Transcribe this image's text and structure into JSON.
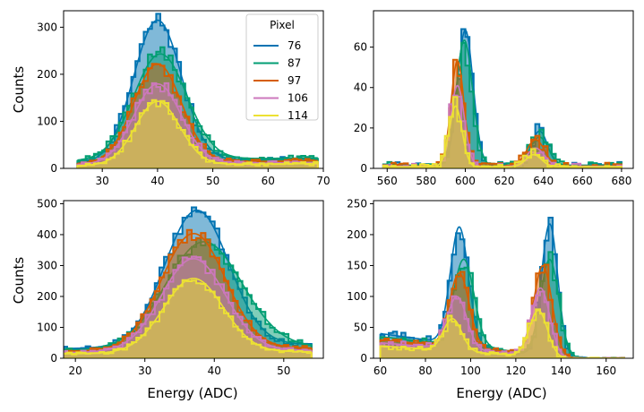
{
  "figure": {
    "y_label": "Counts",
    "x_label": "Energy (ADC)"
  },
  "chart_data": [
    {
      "type": "histogram",
      "panel": "top-left",
      "xlim": [
        23,
        70
      ],
      "ylim": [
        0,
        335
      ],
      "xticks": [
        30,
        40,
        50,
        60,
        70
      ],
      "yticks": [
        0,
        100,
        200,
        300
      ],
      "show_ylabel": true,
      "show_xlabel": false,
      "legend": {
        "title": "Pixel",
        "placement": "top-right"
      },
      "series": [
        {
          "name": "76",
          "color": "#0173b2",
          "peaks": [
            {
              "mu": 40,
              "sigma": 4.3,
              "amp": 300
            }
          ],
          "bg": 12,
          "slope": 0.2
        },
        {
          "name": "87",
          "color": "#029e73",
          "peaks": [
            {
              "mu": 40.5,
              "sigma": 4.8,
              "amp": 225
            }
          ],
          "bg": 16,
          "slope": 0.15
        },
        {
          "name": "97",
          "color": "#d55e00",
          "peaks": [
            {
              "mu": 40,
              "sigma": 4.3,
              "amp": 210
            }
          ],
          "bg": 10,
          "slope": 0.15
        },
        {
          "name": "106",
          "color": "#cc78bc",
          "peaks": [
            {
              "mu": 40,
              "sigma": 4.3,
              "amp": 170
            }
          ],
          "bg": 8,
          "slope": 0.1
        },
        {
          "name": "114",
          "color": "#ece133",
          "peaks": [
            {
              "mu": 40,
              "sigma": 4.0,
              "amp": 135
            }
          ],
          "bg": 6,
          "slope": 0.1
        }
      ]
    },
    {
      "type": "histogram",
      "panel": "top-right",
      "xlim": [
        553,
        686
      ],
      "ylim": [
        0,
        78
      ],
      "xticks": [
        560,
        580,
        600,
        620,
        640,
        660,
        680
      ],
      "yticks": [
        0,
        20,
        40,
        60
      ],
      "show_ylabel": false,
      "show_xlabel": false,
      "series": [
        {
          "name": "76",
          "color": "#0173b2",
          "peaks": [
            {
              "mu": 600,
              "sigma": 4.0,
              "amp": 67
            },
            {
              "mu": 638,
              "sigma": 4.0,
              "amp": 17
            }
          ],
          "bg": 1.5,
          "slope": 0
        },
        {
          "name": "87",
          "color": "#029e73",
          "peaks": [
            {
              "mu": 599.5,
              "sigma": 4.2,
              "amp": 62
            },
            {
              "mu": 638,
              "sigma": 4.5,
              "amp": 14
            }
          ],
          "bg": 1.5,
          "slope": 0
        },
        {
          "name": "97",
          "color": "#d55e00",
          "peaks": [
            {
              "mu": 596,
              "sigma": 3.3,
              "amp": 52
            },
            {
              "mu": 636,
              "sigma": 4.5,
              "amp": 13
            }
          ],
          "bg": 1.2,
          "slope": 0
        },
        {
          "name": "106",
          "color": "#cc78bc",
          "peaks": [
            {
              "mu": 596,
              "sigma": 3.5,
              "amp": 40
            },
            {
              "mu": 636,
              "sigma": 4.5,
              "amp": 9
            }
          ],
          "bg": 1.0,
          "slope": 0
        },
        {
          "name": "114",
          "color": "#ece133",
          "peaks": [
            {
              "mu": 595,
              "sigma": 3.3,
              "amp": 30
            },
            {
              "mu": 635,
              "sigma": 4.0,
              "amp": 6
            }
          ],
          "bg": 0.8,
          "slope": 0
        }
      ]
    },
    {
      "type": "histogram",
      "panel": "bottom-left",
      "xlim": [
        18.3,
        55.7
      ],
      "ylim": [
        0,
        510
      ],
      "xticks": [
        20,
        30,
        40,
        50
      ],
      "yticks": [
        0,
        100,
        200,
        300,
        400,
        500
      ],
      "show_ylabel": true,
      "show_xlabel": true,
      "series": [
        {
          "name": "76",
          "color": "#0173b2",
          "peaks": [
            {
              "mu": 37.5,
              "sigma": 4.6,
              "amp": 440
            }
          ],
          "bg": 30,
          "slope": 0.4
        },
        {
          "name": "87",
          "color": "#029e73",
          "peaks": [
            {
              "mu": 38.5,
              "sigma": 5.5,
              "amp": 345
            }
          ],
          "bg": 25,
          "slope": 0.3
        },
        {
          "name": "97",
          "color": "#d55e00",
          "peaks": [
            {
              "mu": 37,
              "sigma": 4.6,
              "amp": 375
            }
          ],
          "bg": 22,
          "slope": 0.3
        },
        {
          "name": "106",
          "color": "#cc78bc",
          "peaks": [
            {
              "mu": 37,
              "sigma": 4.6,
              "amp": 300
            }
          ],
          "bg": 18,
          "slope": 0.2
        },
        {
          "name": "114",
          "color": "#ece133",
          "peaks": [
            {
              "mu": 37,
              "sigma": 4.3,
              "amp": 240
            }
          ],
          "bg": 14,
          "slope": 0.2
        }
      ]
    },
    {
      "type": "histogram",
      "panel": "bottom-right",
      "xlim": [
        57,
        172
      ],
      "ylim": [
        0,
        255
      ],
      "xticks": [
        60,
        80,
        100,
        120,
        140,
        160
      ],
      "yticks": [
        0,
        50,
        100,
        150,
        200,
        250
      ],
      "show_ylabel": false,
      "show_xlabel": true,
      "series": [
        {
          "name": "76",
          "color": "#0173b2",
          "peaks": [
            {
              "mu": 95,
              "sigma": 4.0,
              "amp": 190
            },
            {
              "mu": 135,
              "sigma": 3.6,
              "amp": 215
            }
          ],
          "bg": 40,
          "slope": -0.5
        },
        {
          "name": "87",
          "color": "#029e73",
          "peaks": [
            {
              "mu": 97,
              "sigma": 4.5,
              "amp": 140
            },
            {
              "mu": 135,
              "sigma": 4.0,
              "amp": 155
            }
          ],
          "bg": 35,
          "slope": -0.4
        },
        {
          "name": "97",
          "color": "#d55e00",
          "peaks": [
            {
              "mu": 95,
              "sigma": 4.3,
              "amp": 120
            },
            {
              "mu": 132,
              "sigma": 4.0,
              "amp": 145
            }
          ],
          "bg": 30,
          "slope": -0.35
        },
        {
          "name": "106",
          "color": "#cc78bc",
          "peaks": [
            {
              "mu": 94,
              "sigma": 4.3,
              "amp": 85
            },
            {
              "mu": 131,
              "sigma": 4.0,
              "amp": 110
            }
          ],
          "bg": 25,
          "slope": -0.3
        },
        {
          "name": "114",
          "color": "#ece133",
          "peaks": [
            {
              "mu": 92,
              "sigma": 4.0,
              "amp": 52
            },
            {
              "mu": 130,
              "sigma": 4.0,
              "amp": 75
            }
          ],
          "bg": 20,
          "slope": -0.25
        }
      ]
    }
  ]
}
